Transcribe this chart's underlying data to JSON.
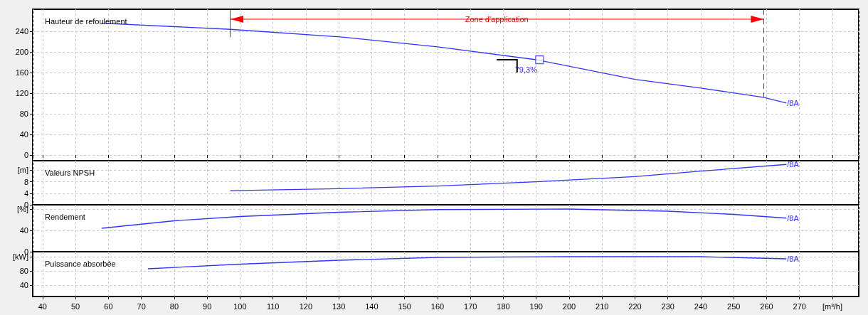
{
  "chart_data": [
    {
      "type": "line",
      "title": "Hauteur de refoulement",
      "xlim": [
        37,
        288
      ],
      "ylim": [
        -11,
        283
      ],
      "yticks": [
        0,
        40,
        80,
        120,
        160,
        200,
        240
      ],
      "grid": true,
      "tick_labels": "y",
      "series": [
        {
          "name": "/8A",
          "color": "#3333ff",
          "x": [
            58,
            97,
            131,
            160,
            190,
            220,
            240,
            259,
            266
          ],
          "values": [
            256,
            244,
            229,
            210,
            185,
            147,
            130,
            112,
            101
          ]
        },
        {
          "type": "scatter",
          "marker": "square",
          "color": "#3333ff",
          "x": [
            191
          ],
          "values": [
            185
          ]
        }
      ],
      "ref_lines": [
        {
          "axis": "x",
          "value": 97,
          "color": "#ff0000",
          "line_style": "solid"
        },
        {
          "axis": "x",
          "value": 259,
          "color": "#ff0000",
          "line_style": "dashed"
        }
      ],
      "annotations": [
        "Zone d'application",
        "79,3%"
      ]
    },
    {
      "type": "line",
      "title": "Valeurs NPSH",
      "xlim": [
        37,
        288
      ],
      "ylim": [
        0,
        15.3
      ],
      "yticks": [
        0,
        4,
        8,
        {
          "value": 12,
          "label": "[m]"
        }
      ],
      "grid": true,
      "tick_labels": "y",
      "series": [
        {
          "name": "/8A",
          "color": "#3333ff",
          "x": [
            97,
            130,
            160,
            190,
            220,
            240,
            266
          ],
          "values": [
            4.9,
            5.6,
            6.5,
            8.0,
            9.8,
            11.7,
            14.0
          ]
        }
      ]
    },
    {
      "type": "line",
      "title": "Rendement",
      "xlim": [
        37,
        288
      ],
      "ylim": [
        0,
        88
      ],
      "yticks": [
        0,
        40,
        {
          "value": 80,
          "label": "[%]"
        }
      ],
      "grid": true,
      "tick_labels": "y",
      "series": [
        {
          "name": "/8A",
          "color": "#3333ff",
          "x": [
            58,
            80,
            100,
            130,
            160,
            200,
            230,
            250,
            266
          ],
          "values": [
            44,
            58,
            66,
            74,
            79,
            80,
            76,
            70,
            63
          ]
        }
      ]
    },
    {
      "type": "line",
      "title": "Puissance absorbée",
      "xlim": [
        37,
        288
      ],
      "xticks": [
        40,
        50,
        60,
        70,
        80,
        90,
        100,
        110,
        120,
        130,
        140,
        150,
        160,
        170,
        180,
        190,
        200,
        210,
        220,
        230,
        240,
        250,
        260,
        270,
        {
          "value": 280,
          "label": "[m³/h]"
        }
      ],
      "ylim": [
        8,
        134
      ],
      "yticks": [
        40,
        80,
        {
          "value": 120,
          "label": "[kW]"
        }
      ],
      "grid": true,
      "series": [
        {
          "name": "/8A",
          "color": "#3333ff",
          "x": [
            72,
            100,
            130,
            160,
            200,
            240,
            266
          ],
          "values": [
            86,
            99,
            110,
            118,
            120,
            120,
            114
          ]
        }
      ]
    }
  ]
}
